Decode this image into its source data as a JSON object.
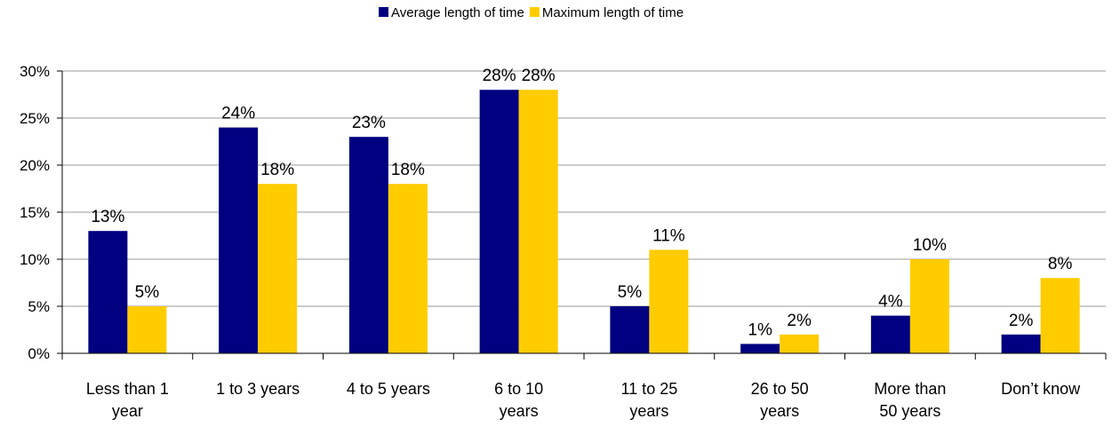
{
  "chart_data": {
    "type": "bar",
    "title": "",
    "xlabel": "",
    "ylabel": "",
    "categories": [
      [
        "Less than 1",
        "year"
      ],
      [
        "1 to 3 years"
      ],
      [
        "4 to 5 years"
      ],
      [
        "6 to 10",
        "years"
      ],
      [
        "11 to 25",
        "years"
      ],
      [
        "26 to 50",
        "years"
      ],
      [
        "More than",
        "50 years"
      ],
      [
        "Don’t know"
      ]
    ],
    "series": [
      {
        "name": "Average length of time",
        "color": "#000080",
        "values": [
          13,
          24,
          23,
          28,
          5,
          1,
          4,
          2
        ],
        "labels": [
          "13%",
          "24%",
          "23%",
          "28%",
          "5%",
          "1%",
          "4%",
          "2%"
        ]
      },
      {
        "name": "Maximum length of time",
        "color": "#FFCC00",
        "values": [
          5,
          18,
          18,
          28,
          11,
          2,
          10,
          8
        ],
        "labels": [
          "5%",
          "18%",
          "18%",
          "28%",
          "11%",
          "2%",
          "10%",
          "8%"
        ]
      }
    ],
    "ylim": [
      0,
      30
    ],
    "yticks": [
      0,
      5,
      10,
      15,
      20,
      25,
      30
    ],
    "ytick_labels": [
      "0%",
      "5%",
      "10%",
      "15%",
      "20%",
      "25%",
      "30%"
    ],
    "grid": true,
    "legend_position": "top-center"
  }
}
